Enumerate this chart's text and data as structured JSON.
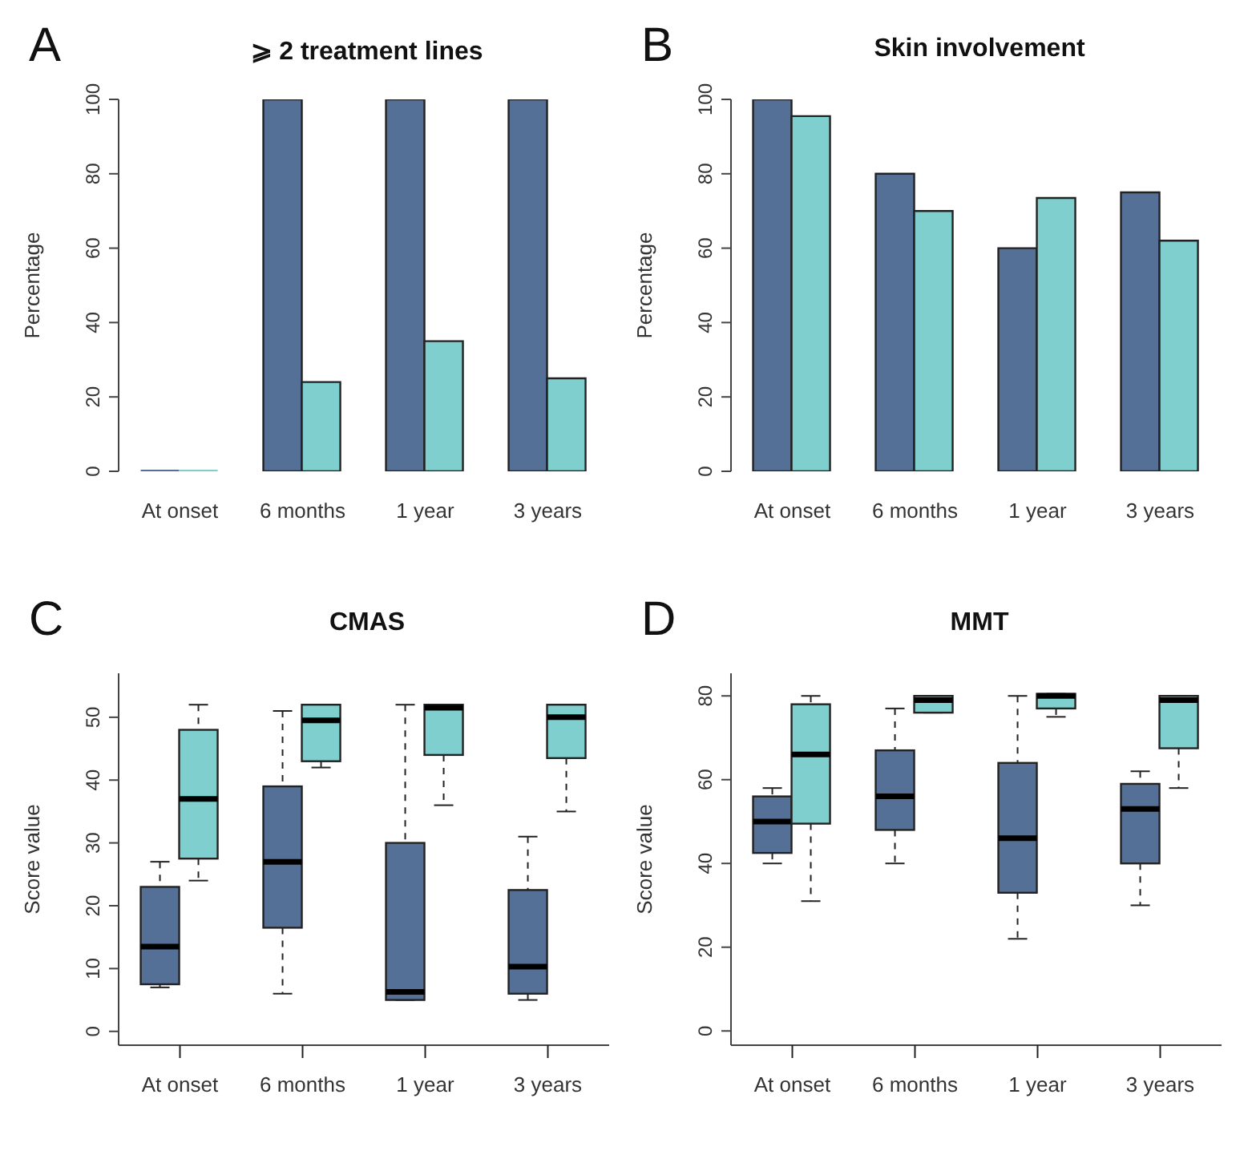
{
  "chart_data": [
    {
      "type": "bar",
      "title": "⩾ 2 treatment lines",
      "annotations": [
        "A"
      ],
      "ylabel": "Percentage",
      "categories": [
        "At onset",
        "6 months",
        "1 year",
        "3 years"
      ],
      "series": [
        {
          "color": "#557096",
          "values": [
            0,
            100,
            100,
            100
          ]
        },
        {
          "color": "#7ecfcd",
          "values": [
            0,
            24,
            35,
            25
          ]
        }
      ],
      "ylim": [
        0,
        100
      ],
      "yticks": [
        0,
        20,
        40,
        60,
        80,
        100
      ],
      "grid": false,
      "legend": false
    },
    {
      "type": "bar",
      "title": "Skin involvement",
      "annotations": [
        "B"
      ],
      "ylabel": "Percentage",
      "categories": [
        "At onset",
        "6 months",
        "1 year",
        "3 years"
      ],
      "series": [
        {
          "color": "#557096",
          "values": [
            100,
            80,
            60,
            75
          ]
        },
        {
          "color": "#7ecfcd",
          "values": [
            95.5,
            70,
            73.5,
            62
          ]
        }
      ],
      "ylim": [
        0,
        100
      ],
      "yticks": [
        0,
        20,
        40,
        60,
        80,
        100
      ],
      "grid": false,
      "legend": false
    },
    {
      "type": "box",
      "title": "CMAS",
      "annotations": [
        "C"
      ],
      "ylabel": "Score value",
      "categories": [
        "At onset",
        "6 months",
        "1 year",
        "3 years"
      ],
      "series": [
        {
          "color": "#557096",
          "boxes": [
            {
              "low": 7,
              "q1": 7.5,
              "median": 13.5,
              "q3": 23,
              "high": 27
            },
            {
              "low": 6,
              "q1": 16.5,
              "median": 27,
              "q3": 39,
              "high": 51
            },
            {
              "low": 5,
              "q1": 5,
              "median": 6.3,
              "q3": 30,
              "high": 52
            },
            {
              "low": 5,
              "q1": 6,
              "median": 10.3,
              "q3": 22.5,
              "high": 31
            }
          ]
        },
        {
          "color": "#7ecfcd",
          "boxes": [
            {
              "low": 24,
              "q1": 27.5,
              "median": 37,
              "q3": 48,
              "high": 52
            },
            {
              "low": 42,
              "q1": 43,
              "median": 49.5,
              "q3": 52,
              "high": 52
            },
            {
              "low": 36,
              "q1": 44,
              "median": 51.5,
              "q3": 52,
              "high": 52
            },
            {
              "low": 35,
              "q1": 43.5,
              "median": 50,
              "q3": 52,
              "high": 52
            }
          ]
        }
      ],
      "ylim": [
        -2.2,
        57
      ],
      "yticks": [
        0,
        10,
        20,
        30,
        40,
        50
      ],
      "grid": false,
      "legend": false
    },
    {
      "type": "box",
      "title": "MMT",
      "annotations": [
        "D"
      ],
      "ylabel": "Score value",
      "categories": [
        "At onset",
        "6 months",
        "1 year",
        "3 years"
      ],
      "series": [
        {
          "color": "#557096",
          "boxes": [
            {
              "low": 40,
              "q1": 42.5,
              "median": 50,
              "q3": 56,
              "high": 58
            },
            {
              "low": 40,
              "q1": 48,
              "median": 56,
              "q3": 67,
              "high": 77
            },
            {
              "low": 22,
              "q1": 33,
              "median": 46,
              "q3": 64,
              "high": 80
            },
            {
              "low": 30,
              "q1": 40,
              "median": 53,
              "q3": 59,
              "high": 62
            }
          ]
        },
        {
          "color": "#7ecfcd",
          "boxes": [
            {
              "low": 31,
              "q1": 49.5,
              "median": 66,
              "q3": 78,
              "high": 80
            },
            {
              "low": 76,
              "q1": 76,
              "median": 79,
              "q3": 80,
              "high": 80
            },
            {
              "low": 75,
              "q1": 77,
              "median": 80,
              "q3": 80.5,
              "high": 80.5
            },
            {
              "low": 58,
              "q1": 67.5,
              "median": 79,
              "q3": 80,
              "high": 80
            }
          ]
        }
      ],
      "ylim": [
        -3.4,
        85.4
      ],
      "yticks": [
        0,
        20,
        40,
        60,
        80
      ],
      "grid": false,
      "legend": false
    }
  ]
}
